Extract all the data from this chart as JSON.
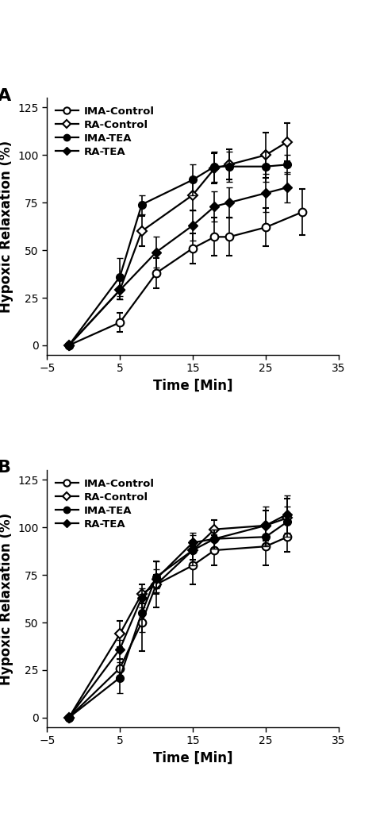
{
  "panel_A_clean": {
    "IMA_Control_x": [
      -2,
      5,
      10,
      15,
      18,
      20,
      25,
      30
    ],
    "IMA_Control_y": [
      0,
      12,
      38,
      51,
      57,
      57,
      62,
      70
    ],
    "IMA_Control_yerr": [
      0,
      5,
      8,
      8,
      10,
      10,
      10,
      12
    ],
    "RA_Control_x": [
      -2,
      5,
      8,
      15,
      18,
      20,
      25,
      28
    ],
    "RA_Control_y": [
      0,
      29,
      60,
      79,
      93,
      95,
      100,
      107
    ],
    "RA_Control_yerr": [
      0,
      5,
      8,
      8,
      8,
      8,
      12,
      10
    ],
    "IMA_TEA_x": [
      -2,
      5,
      8,
      15,
      18,
      20,
      25,
      28
    ],
    "IMA_TEA_y": [
      0,
      36,
      74,
      87,
      94,
      94,
      94,
      95
    ],
    "IMA_TEA_yerr": [
      0,
      10,
      5,
      8,
      8,
      8,
      8,
      5
    ],
    "RA_TEA_x": [
      -2,
      5,
      10,
      15,
      18,
      20,
      25,
      28
    ],
    "RA_TEA_y": [
      0,
      29,
      49,
      63,
      73,
      75,
      80,
      83
    ],
    "RA_TEA_yerr": [
      0,
      5,
      8,
      8,
      8,
      8,
      10,
      8
    ]
  },
  "panel_B_clean": {
    "IMA_Control_x": [
      -2,
      5,
      8,
      10,
      15,
      18,
      25,
      28
    ],
    "IMA_Control_y": [
      0,
      26,
      50,
      70,
      80,
      88,
      90,
      95
    ],
    "IMA_Control_yerr": [
      0,
      5,
      15,
      12,
      10,
      8,
      10,
      8
    ],
    "RA_Control_x": [
      -2,
      5,
      8,
      10,
      15,
      18,
      25,
      28
    ],
    "RA_Control_y": [
      0,
      44,
      65,
      70,
      88,
      99,
      101,
      105
    ],
    "RA_Control_yerr": [
      0,
      7,
      5,
      5,
      5,
      5,
      8,
      10
    ],
    "IMA_TEA_x": [
      -2,
      5,
      8,
      10,
      15,
      18,
      25,
      28
    ],
    "IMA_TEA_y": [
      0,
      21,
      55,
      74,
      88,
      94,
      95,
      103
    ],
    "IMA_TEA_yerr": [
      0,
      8,
      10,
      8,
      8,
      5,
      5,
      8
    ],
    "RA_TEA_x": [
      -2,
      5,
      8,
      10,
      15,
      18,
      25,
      28
    ],
    "RA_TEA_y": [
      0,
      36,
      63,
      73,
      92,
      94,
      101,
      107
    ],
    "RA_TEA_yerr": [
      0,
      5,
      5,
      5,
      5,
      5,
      10,
      10
    ]
  },
  "xlabel": "Time [Min]",
  "ylabel": "Hypoxic Relaxation (%)",
  "xlim": [
    -5,
    35
  ],
  "ylim": [
    -5,
    130
  ],
  "xticks": [
    -5,
    5,
    15,
    25,
    35
  ],
  "yticks": [
    0,
    25,
    50,
    75,
    100,
    125
  ],
  "legend_labels": [
    "IMA-Control",
    "RA-Control",
    "IMA-TEA",
    "RA-TEA"
  ],
  "bg_color": "#ffffff",
  "label_fontsize": 12,
  "tick_fontsize": 10,
  "legend_fontsize": 9.5,
  "panel_A_label": "A",
  "panel_B_label": "B",
  "lw": 1.6,
  "ms_circle": 7,
  "ms_diamond": 6,
  "capsize": 3,
  "elinewidth": 1.2
}
